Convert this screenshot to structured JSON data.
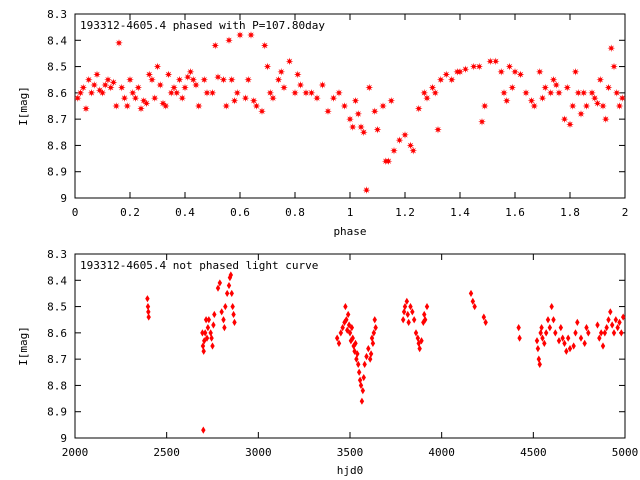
{
  "colors": {
    "marker": "#ff0000",
    "axis": "#000000",
    "background": "#ffffff"
  },
  "chart_data": [
    {
      "type": "scatter",
      "title": "193312-4605.4 phased with P=107.80day",
      "xlabel": "phase",
      "ylabel": "I[mag]",
      "xlim": [
        0,
        2
      ],
      "ylim": [
        8.3,
        9
      ],
      "y_inverted": true,
      "grid": false,
      "legend": "none",
      "xticks": [
        0,
        0.2,
        0.4,
        0.6,
        0.8,
        1,
        1.2,
        1.4,
        1.6,
        1.8,
        2
      ],
      "xtick_labels": [
        "0",
        "0.2",
        "0.4",
        "0.6",
        "0.8",
        "1",
        "1.2",
        "1.4",
        "1.6",
        "1.8",
        "2"
      ],
      "yticks": [
        8.3,
        8.4,
        8.5,
        8.6,
        8.7,
        8.8,
        8.9,
        9
      ],
      "ytick_labels": [
        "8.3",
        "8.4",
        "8.5",
        "8.6",
        "8.7",
        "8.8",
        "8.9",
        "9"
      ],
      "marker": "star",
      "points": [
        [
          0.01,
          8.62
        ],
        [
          0.02,
          8.6
        ],
        [
          0.03,
          8.58
        ],
        [
          0.04,
          8.66
        ],
        [
          0.05,
          8.55
        ],
        [
          0.06,
          8.6
        ],
        [
          0.07,
          8.57
        ],
        [
          0.08,
          8.53
        ],
        [
          0.09,
          8.59
        ],
        [
          0.1,
          8.6
        ],
        [
          0.11,
          8.57
        ],
        [
          0.12,
          8.55
        ],
        [
          0.13,
          8.58
        ],
        [
          0.14,
          8.56
        ],
        [
          0.15,
          8.65
        ],
        [
          0.16,
          8.41
        ],
        [
          0.17,
          8.58
        ],
        [
          0.18,
          8.62
        ],
        [
          0.19,
          8.65
        ],
        [
          0.2,
          8.55
        ],
        [
          0.21,
          8.6
        ],
        [
          0.22,
          8.62
        ],
        [
          0.23,
          8.58
        ],
        [
          0.24,
          8.66
        ],
        [
          0.25,
          8.63
        ],
        [
          0.26,
          8.64
        ],
        [
          0.27,
          8.53
        ],
        [
          0.28,
          8.55
        ],
        [
          0.29,
          8.62
        ],
        [
          0.3,
          8.5
        ],
        [
          0.31,
          8.57
        ],
        [
          0.32,
          8.64
        ],
        [
          0.33,
          8.65
        ],
        [
          0.34,
          8.53
        ],
        [
          0.35,
          8.6
        ],
        [
          0.36,
          8.58
        ],
        [
          0.37,
          8.6
        ],
        [
          0.38,
          8.55
        ],
        [
          0.39,
          8.62
        ],
        [
          0.4,
          8.58
        ],
        [
          0.41,
          8.54
        ],
        [
          0.42,
          8.52
        ],
        [
          0.43,
          8.55
        ],
        [
          0.44,
          8.57
        ],
        [
          0.45,
          8.65
        ],
        [
          0.47,
          8.55
        ],
        [
          0.48,
          8.6
        ],
        [
          0.5,
          8.6
        ],
        [
          0.51,
          8.42
        ],
        [
          0.52,
          8.54
        ],
        [
          0.54,
          8.55
        ],
        [
          0.55,
          8.65
        ],
        [
          0.56,
          8.4
        ],
        [
          0.57,
          8.55
        ],
        [
          0.58,
          8.63
        ],
        [
          0.59,
          8.6
        ],
        [
          0.6,
          8.38
        ],
        [
          0.62,
          8.62
        ],
        [
          0.63,
          8.55
        ],
        [
          0.64,
          8.38
        ],
        [
          0.65,
          8.63
        ],
        [
          0.66,
          8.65
        ],
        [
          0.68,
          8.67
        ],
        [
          0.69,
          8.42
        ],
        [
          0.7,
          8.5
        ],
        [
          0.71,
          8.6
        ],
        [
          0.72,
          8.62
        ],
        [
          0.74,
          8.55
        ],
        [
          0.75,
          8.52
        ],
        [
          0.76,
          8.58
        ],
        [
          0.78,
          8.48
        ],
        [
          0.8,
          8.6
        ],
        [
          0.81,
          8.53
        ],
        [
          0.82,
          8.57
        ],
        [
          0.84,
          8.6
        ],
        [
          0.86,
          8.6
        ],
        [
          0.88,
          8.62
        ],
        [
          0.9,
          8.57
        ],
        [
          0.92,
          8.67
        ],
        [
          0.94,
          8.62
        ],
        [
          0.96,
          8.6
        ],
        [
          0.98,
          8.65
        ],
        [
          1.0,
          8.7
        ],
        [
          1.01,
          8.73
        ],
        [
          1.02,
          8.63
        ],
        [
          1.03,
          8.68
        ],
        [
          1.04,
          8.73
        ],
        [
          1.05,
          8.75
        ],
        [
          1.06,
          8.97
        ],
        [
          1.07,
          8.58
        ],
        [
          1.09,
          8.67
        ],
        [
          1.1,
          8.74
        ],
        [
          1.12,
          8.65
        ],
        [
          1.13,
          8.86
        ],
        [
          1.14,
          8.86
        ],
        [
          1.15,
          8.63
        ],
        [
          1.16,
          8.82
        ],
        [
          1.18,
          8.78
        ],
        [
          1.2,
          8.76
        ],
        [
          1.22,
          8.8
        ],
        [
          1.23,
          8.82
        ],
        [
          1.25,
          8.66
        ],
        [
          1.27,
          8.6
        ],
        [
          1.28,
          8.62
        ],
        [
          1.3,
          8.58
        ],
        [
          1.31,
          8.6
        ],
        [
          1.32,
          8.74
        ],
        [
          1.33,
          8.55
        ],
        [
          1.35,
          8.53
        ],
        [
          1.37,
          8.55
        ],
        [
          1.39,
          8.52
        ],
        [
          1.4,
          8.52
        ],
        [
          1.42,
          8.51
        ],
        [
          1.45,
          8.5
        ],
        [
          1.47,
          8.5
        ],
        [
          1.48,
          8.71
        ],
        [
          1.49,
          8.65
        ],
        [
          1.51,
          8.48
        ],
        [
          1.53,
          8.48
        ],
        [
          1.55,
          8.52
        ],
        [
          1.56,
          8.6
        ],
        [
          1.57,
          8.63
        ],
        [
          1.58,
          8.5
        ],
        [
          1.59,
          8.58
        ],
        [
          1.6,
          8.52
        ],
        [
          1.62,
          8.53
        ],
        [
          1.64,
          8.6
        ],
        [
          1.66,
          8.63
        ],
        [
          1.67,
          8.65
        ],
        [
          1.69,
          8.52
        ],
        [
          1.7,
          8.62
        ],
        [
          1.71,
          8.58
        ],
        [
          1.73,
          8.6
        ],
        [
          1.74,
          8.55
        ],
        [
          1.75,
          8.57
        ],
        [
          1.76,
          8.6
        ],
        [
          1.78,
          8.7
        ],
        [
          1.79,
          8.58
        ],
        [
          1.8,
          8.72
        ],
        [
          1.81,
          8.65
        ],
        [
          1.82,
          8.52
        ],
        [
          1.83,
          8.6
        ],
        [
          1.84,
          8.68
        ],
        [
          1.85,
          8.6
        ],
        [
          1.86,
          8.65
        ],
        [
          1.88,
          8.6
        ],
        [
          1.89,
          8.62
        ],
        [
          1.9,
          8.64
        ],
        [
          1.91,
          8.55
        ],
        [
          1.92,
          8.65
        ],
        [
          1.93,
          8.7
        ],
        [
          1.94,
          8.58
        ],
        [
          1.95,
          8.43
        ],
        [
          1.96,
          8.5
        ],
        [
          1.97,
          8.6
        ],
        [
          1.98,
          8.65
        ],
        [
          1.99,
          8.62
        ]
      ]
    },
    {
      "type": "scatter",
      "title": "193312-4605.4 not phased light curve",
      "xlabel": "hjd0",
      "ylabel": "I[mag]",
      "xlim": [
        2000,
        5000
      ],
      "ylim": [
        8.3,
        9
      ],
      "y_inverted": true,
      "grid": false,
      "legend": "none",
      "xticks": [
        2000,
        2500,
        3000,
        3500,
        4000,
        4500,
        5000
      ],
      "xtick_labels": [
        "2000",
        "2500",
        "3000",
        "3500",
        "4000",
        "4500",
        "5000"
      ],
      "yticks": [
        8.3,
        8.4,
        8.5,
        8.6,
        8.7,
        8.8,
        8.9,
        9
      ],
      "ytick_labels": [
        "8.3",
        "8.4",
        "8.5",
        "8.6",
        "8.7",
        "8.8",
        "8.9",
        "9"
      ],
      "marker": "diamond",
      "points": [
        [
          2395,
          8.47
        ],
        [
          2398,
          8.5
        ],
        [
          2400,
          8.52
        ],
        [
          2402,
          8.54
        ],
        [
          2695,
          8.6
        ],
        [
          2698,
          8.65
        ],
        [
          2700,
          8.97
        ],
        [
          2702,
          8.67
        ],
        [
          2705,
          8.63
        ],
        [
          2710,
          8.6
        ],
        [
          2715,
          8.55
        ],
        [
          2720,
          8.62
        ],
        [
          2725,
          8.58
        ],
        [
          2730,
          8.55
        ],
        [
          2740,
          8.6
        ],
        [
          2745,
          8.62
        ],
        [
          2750,
          8.65
        ],
        [
          2755,
          8.57
        ],
        [
          2760,
          8.53
        ],
        [
          2780,
          8.43
        ],
        [
          2790,
          8.41
        ],
        [
          2800,
          8.52
        ],
        [
          2810,
          8.55
        ],
        [
          2815,
          8.58
        ],
        [
          2820,
          8.5
        ],
        [
          2830,
          8.45
        ],
        [
          2840,
          8.42
        ],
        [
          2845,
          8.39
        ],
        [
          2850,
          8.38
        ],
        [
          2855,
          8.45
        ],
        [
          2860,
          8.5
        ],
        [
          2865,
          8.53
        ],
        [
          2870,
          8.56
        ],
        [
          3430,
          8.62
        ],
        [
          3440,
          8.64
        ],
        [
          3450,
          8.6
        ],
        [
          3460,
          8.58
        ],
        [
          3470,
          8.56
        ],
        [
          3475,
          8.5
        ],
        [
          3480,
          8.55
        ],
        [
          3485,
          8.59
        ],
        [
          3490,
          8.53
        ],
        [
          3495,
          8.57
        ],
        [
          3500,
          8.6
        ],
        [
          3505,
          8.63
        ],
        [
          3510,
          8.58
        ],
        [
          3515,
          8.62
        ],
        [
          3520,
          8.65
        ],
        [
          3525,
          8.67
        ],
        [
          3530,
          8.64
        ],
        [
          3535,
          8.7
        ],
        [
          3540,
          8.68
        ],
        [
          3545,
          8.72
        ],
        [
          3550,
          8.75
        ],
        [
          3555,
          8.78
        ],
        [
          3560,
          8.8
        ],
        [
          3565,
          8.86
        ],
        [
          3570,
          8.82
        ],
        [
          3575,
          8.77
        ],
        [
          3580,
          8.72
        ],
        [
          3590,
          8.69
        ],
        [
          3600,
          8.66
        ],
        [
          3610,
          8.7
        ],
        [
          3615,
          8.68
        ],
        [
          3620,
          8.62
        ],
        [
          3625,
          8.64
        ],
        [
          3630,
          8.6
        ],
        [
          3635,
          8.55
        ],
        [
          3640,
          8.58
        ],
        [
          3790,
          8.55
        ],
        [
          3795,
          8.52
        ],
        [
          3800,
          8.5
        ],
        [
          3810,
          8.48
        ],
        [
          3815,
          8.53
        ],
        [
          3820,
          8.56
        ],
        [
          3830,
          8.5
        ],
        [
          3840,
          8.52
        ],
        [
          3850,
          8.55
        ],
        [
          3860,
          8.6
        ],
        [
          3870,
          8.62
        ],
        [
          3875,
          8.64
        ],
        [
          3880,
          8.66
        ],
        [
          3890,
          8.63
        ],
        [
          3900,
          8.56
        ],
        [
          3905,
          8.53
        ],
        [
          3910,
          8.55
        ],
        [
          3920,
          8.5
        ],
        [
          4160,
          8.45
        ],
        [
          4170,
          8.48
        ],
        [
          4180,
          8.5
        ],
        [
          4230,
          8.54
        ],
        [
          4240,
          8.56
        ],
        [
          4420,
          8.58
        ],
        [
          4425,
          8.62
        ],
        [
          4520,
          8.63
        ],
        [
          4525,
          8.66
        ],
        [
          4530,
          8.7
        ],
        [
          4535,
          8.72
        ],
        [
          4540,
          8.6
        ],
        [
          4545,
          8.58
        ],
        [
          4550,
          8.62
        ],
        [
          4560,
          8.64
        ],
        [
          4570,
          8.6
        ],
        [
          4580,
          8.55
        ],
        [
          4590,
          8.58
        ],
        [
          4600,
          8.5
        ],
        [
          4610,
          8.55
        ],
        [
          4620,
          8.6
        ],
        [
          4640,
          8.63
        ],
        [
          4650,
          8.58
        ],
        [
          4660,
          8.62
        ],
        [
          4670,
          8.64
        ],
        [
          4680,
          8.67
        ],
        [
          4690,
          8.62
        ],
        [
          4700,
          8.66
        ],
        [
          4720,
          8.65
        ],
        [
          4730,
          8.6
        ],
        [
          4740,
          8.56
        ],
        [
          4760,
          8.62
        ],
        [
          4780,
          8.64
        ],
        [
          4790,
          8.58
        ],
        [
          4800,
          8.6
        ],
        [
          4850,
          8.57
        ],
        [
          4860,
          8.62
        ],
        [
          4870,
          8.6
        ],
        [
          4880,
          8.65
        ],
        [
          4890,
          8.6
        ],
        [
          4900,
          8.58
        ],
        [
          4910,
          8.55
        ],
        [
          4920,
          8.52
        ],
        [
          4930,
          8.57
        ],
        [
          4940,
          8.6
        ],
        [
          4950,
          8.55
        ],
        [
          4960,
          8.58
        ],
        [
          4970,
          8.56
        ],
        [
          4980,
          8.6
        ],
        [
          4990,
          8.54
        ]
      ]
    }
  ]
}
